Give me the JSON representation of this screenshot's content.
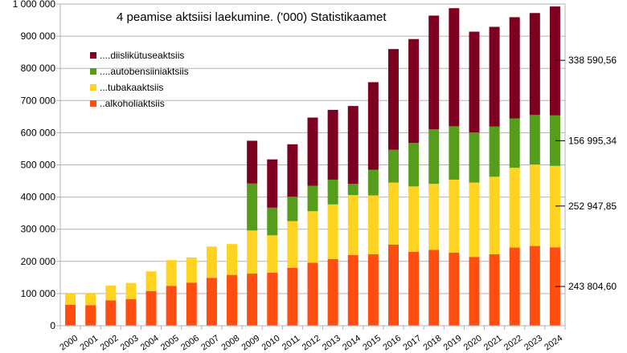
{
  "chart_data": {
    "type": "bar",
    "stacked": true,
    "title": "4 peamise aktsiisi laekumine. ('000)  Statistikaamet",
    "xlabel": "",
    "ylabel": "",
    "ylim": [
      0,
      1000000
    ],
    "yticks": [
      0,
      100000,
      200000,
      300000,
      400000,
      500000,
      600000,
      700000,
      800000,
      900000,
      1000000
    ],
    "ytick_labels": [
      "0",
      "100 000",
      "200 000",
      "300 000",
      "400 000",
      "500 000",
      "600 000",
      "700 000",
      "800 000",
      "900 000",
      "1 000 000"
    ],
    "grid": "horizontal",
    "legend_position": "top-left",
    "categories": [
      "2000",
      "2001",
      "2002",
      "2003",
      "2004",
      "2005",
      "2006",
      "2007",
      "2008",
      "2009",
      "2010",
      "2011",
      "2012",
      "2013",
      "2014",
      "2015",
      "2016",
      "2017",
      "2018",
      "2019",
      "2020",
      "2021",
      "2022",
      "2023",
      "2024"
    ],
    "series": [
      {
        "name": "..alkoholiaktsiis",
        "color": "#ff4e10",
        "values": [
          65000,
          64000,
          79000,
          83000,
          108000,
          124000,
          134000,
          149000,
          158000,
          162000,
          165000,
          180000,
          196000,
          207000,
          220000,
          222000,
          252000,
          230000,
          236000,
          227000,
          214000,
          222000,
          243000,
          248000,
          243805
        ]
      },
      {
        "name": "...tubakaaktsiis",
        "color": "#ffd320",
        "values": [
          35000,
          38000,
          46000,
          50000,
          61000,
          80000,
          78000,
          97000,
          96000,
          134000,
          116000,
          145000,
          160000,
          170000,
          186000,
          183000,
          193000,
          203000,
          205000,
          227000,
          231000,
          241000,
          248000,
          253000,
          252948
        ]
      },
      {
        "name": "....autobensiiniaktsiis",
        "color": "#579d1c",
        "values": [
          0,
          0,
          0,
          0,
          0,
          0,
          0,
          0,
          0,
          146000,
          86000,
          76000,
          79000,
          77000,
          35000,
          80000,
          102000,
          135000,
          170000,
          166000,
          156000,
          156000,
          153000,
          154000,
          156995
        ]
      },
      {
        "name": "....diislikütuseaktsiis",
        "color": "#7e0021",
        "values": [
          0,
          0,
          0,
          0,
          0,
          0,
          0,
          0,
          0,
          133000,
          150000,
          163000,
          212000,
          217000,
          242000,
          272000,
          313000,
          323000,
          353000,
          367000,
          313000,
          310000,
          315000,
          317000,
          338591
        ]
      }
    ],
    "annotations": [
      {
        "label": "338 590,56",
        "value": 825000
      },
      {
        "label": "156 995,34",
        "value": 575000
      },
      {
        "label": "252 947,85",
        "value": 372000
      },
      {
        "label": "243 804,60",
        "value": 122000
      }
    ]
  }
}
